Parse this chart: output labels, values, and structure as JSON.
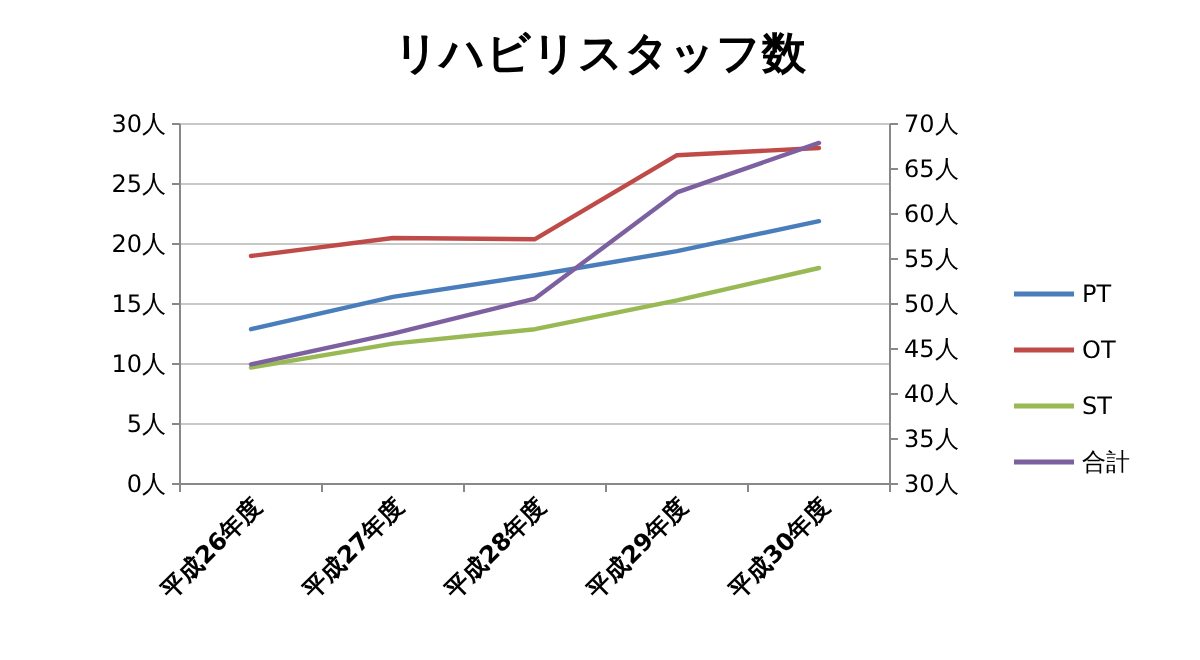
{
  "chart_data": {
    "type": "line",
    "title": "リハビリスタッフ数",
    "categories": [
      "平成26年度",
      "平成27年度",
      "平成28年度",
      "平成29年度",
      "平成30年度"
    ],
    "series": [
      {
        "name": "PT",
        "color": "#4a7ebb",
        "values": [
          12.9,
          15.6,
          17.4,
          19.4,
          21.9
        ]
      },
      {
        "name": "OT",
        "color": "#be4b48",
        "values": [
          19.0,
          20.5,
          20.4,
          27.4,
          28.0
        ]
      },
      {
        "name": "ST",
        "color": "#98b954",
        "values": [
          9.7,
          11.7,
          12.9,
          15.3,
          18.0
        ]
      },
      {
        "name": "合計",
        "color": "#7d60a0",
        "axis": "y2",
        "values": [
          43.3,
          46.7,
          50.6,
          62.4,
          67.9
        ]
      }
    ],
    "ylim": [
      0,
      30
    ],
    "yticks": [
      {
        "value": 0,
        "label": "0人"
      },
      {
        "value": 5,
        "label": "5人"
      },
      {
        "value": 10,
        "label": "10人"
      },
      {
        "value": 15,
        "label": "15人"
      },
      {
        "value": 20,
        "label": "20人"
      },
      {
        "value": 25,
        "label": "25人"
      },
      {
        "value": 30,
        "label": "30人"
      }
    ],
    "y2lim": [
      30,
      70
    ],
    "y2ticks": [
      {
        "value": 30,
        "label": "30人"
      },
      {
        "value": 35,
        "label": "35人"
      },
      {
        "value": 40,
        "label": "40人"
      },
      {
        "value": 45,
        "label": "45人"
      },
      {
        "value": 50,
        "label": "50人"
      },
      {
        "value": 55,
        "label": "55人"
      },
      {
        "value": 60,
        "label": "60人"
      },
      {
        "value": 65,
        "label": "65人"
      },
      {
        "value": 70,
        "label": "70人"
      }
    ],
    "grid": "y",
    "legend": "right",
    "marker": "none",
    "line_style": "solid"
  }
}
